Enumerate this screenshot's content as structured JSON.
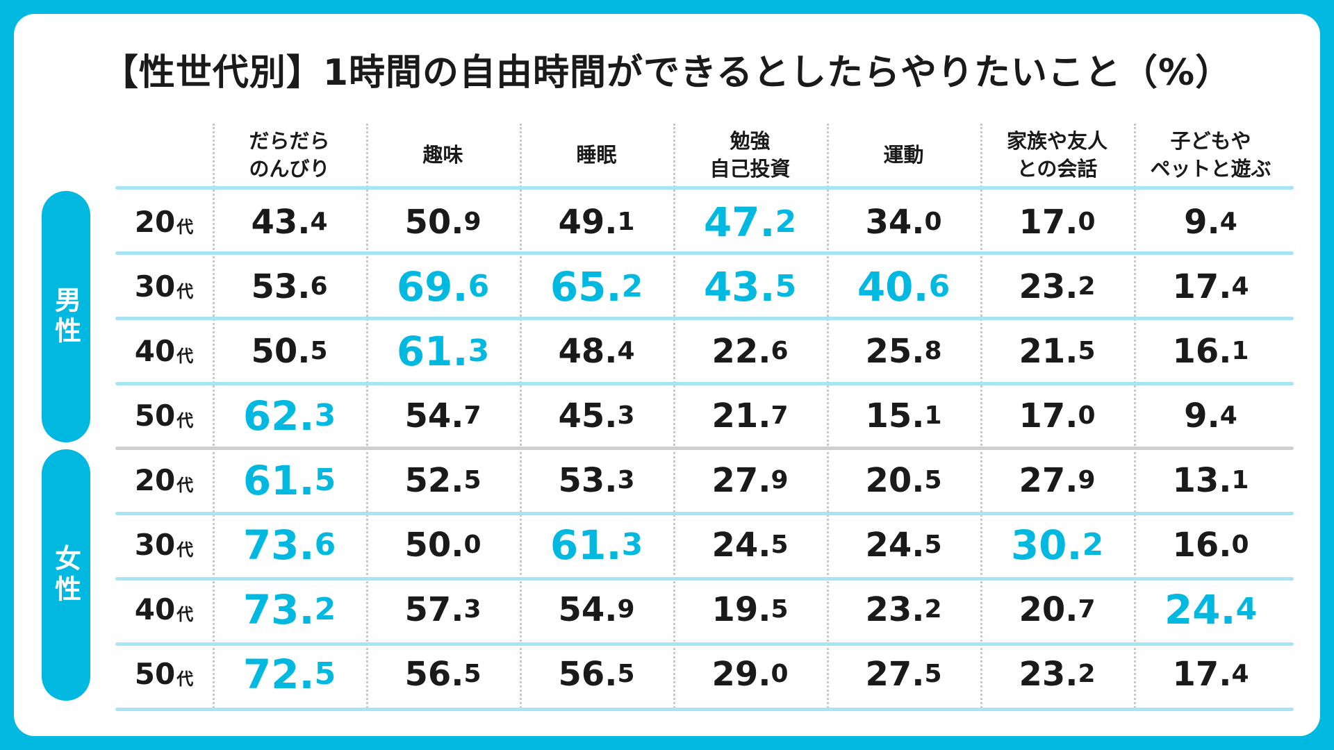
{
  "title": "【性世代別】1時間の自由時間ができるとしたらやりたいこと（%）",
  "colors": {
    "background": "#00b8e0",
    "accent": "#00b8e0",
    "text": "#1a1a1a",
    "row_line": "#a8e4f4",
    "divider": "#cfcfcf"
  },
  "chart_data": {
    "type": "table",
    "title": "【性世代別】1時間の自由時間ができるとしたらやりたいこと（%）",
    "columns": [
      "だらだら\nのんびり",
      "趣味",
      "睡眠",
      "勉強\n自己投資",
      "運動",
      "家族や友人\nとの会話",
      "子どもや\nペットと遊ぶ"
    ],
    "age_suffix": "代",
    "groups": [
      {
        "name": "男性",
        "rows": [
          {
            "age": "20",
            "values": [
              "43.4",
              "50.9",
              "49.1",
              "47.2",
              "34.0",
              "17.0",
              "9.4"
            ],
            "highlight": [
              false,
              false,
              false,
              true,
              false,
              false,
              false
            ]
          },
          {
            "age": "30",
            "values": [
              "53.6",
              "69.6",
              "65.2",
              "43.5",
              "40.6",
              "23.2",
              "17.4"
            ],
            "highlight": [
              false,
              true,
              true,
              true,
              true,
              false,
              false
            ]
          },
          {
            "age": "40",
            "values": [
              "50.5",
              "61.3",
              "48.4",
              "22.6",
              "25.8",
              "21.5",
              "16.1"
            ],
            "highlight": [
              false,
              true,
              false,
              false,
              false,
              false,
              false
            ]
          },
          {
            "age": "50",
            "values": [
              "62.3",
              "54.7",
              "45.3",
              "21.7",
              "15.1",
              "17.0",
              "9.4"
            ],
            "highlight": [
              true,
              false,
              false,
              false,
              false,
              false,
              false
            ]
          }
        ]
      },
      {
        "name": "女性",
        "rows": [
          {
            "age": "20",
            "values": [
              "61.5",
              "52.5",
              "53.3",
              "27.9",
              "20.5",
              "27.9",
              "13.1"
            ],
            "highlight": [
              true,
              false,
              false,
              false,
              false,
              false,
              false
            ]
          },
          {
            "age": "30",
            "values": [
              "73.6",
              "50.0",
              "61.3",
              "24.5",
              "24.5",
              "30.2",
              "16.0"
            ],
            "highlight": [
              true,
              false,
              true,
              false,
              false,
              true,
              false
            ]
          },
          {
            "age": "40",
            "values": [
              "73.2",
              "57.3",
              "54.9",
              "19.5",
              "23.2",
              "20.7",
              "24.4"
            ],
            "highlight": [
              true,
              false,
              false,
              false,
              false,
              false,
              true
            ]
          },
          {
            "age": "50",
            "values": [
              "72.5",
              "56.5",
              "56.5",
              "29.0",
              "27.5",
              "23.2",
              "17.4"
            ],
            "highlight": [
              true,
              false,
              false,
              false,
              false,
              false,
              false
            ]
          }
        ]
      }
    ]
  }
}
